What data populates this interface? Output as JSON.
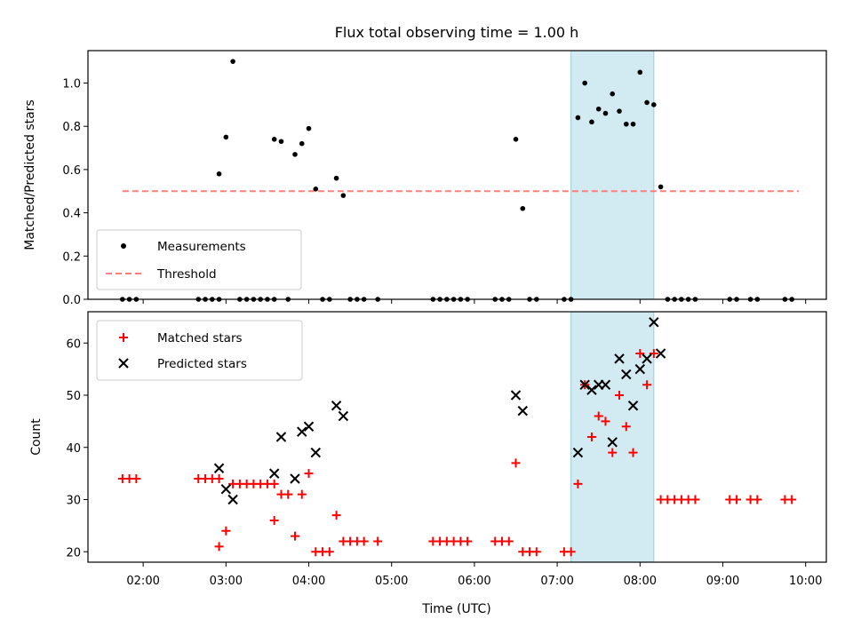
{
  "chart_data": [
    {
      "type": "scatter",
      "title": "Flux total observing time = 1.00 h",
      "xlabel": "",
      "ylabel": "Matched/Predicted stars",
      "xlim": [
        "01:20",
        "10:15"
      ],
      "ylim": [
        0,
        1.15
      ],
      "yticks": [
        "0.0",
        "0.2",
        "0.4",
        "0.6",
        "0.8",
        "1.0"
      ],
      "highlight_interval": [
        "07:10",
        "08:10"
      ],
      "highlight_color": "#add8e6",
      "legend_position": "lower-left",
      "series": [
        {
          "name": "Measurements",
          "marker": "dot",
          "color": "#000000",
          "points": [
            [
              "01:45",
              0
            ],
            [
              "01:50",
              0
            ],
            [
              "01:55",
              0
            ],
            [
              "02:40",
              0
            ],
            [
              "02:45",
              0
            ],
            [
              "02:50",
              0
            ],
            [
              "02:55",
              0
            ],
            [
              "02:55",
              0.58
            ],
            [
              "03:00",
              0.75
            ],
            [
              "03:05",
              1.1
            ],
            [
              "03:10",
              0
            ],
            [
              "03:15",
              0
            ],
            [
              "03:20",
              0
            ],
            [
              "03:25",
              0
            ],
            [
              "03:30",
              0
            ],
            [
              "03:35",
              0
            ],
            [
              "03:35",
              0.74
            ],
            [
              "03:40",
              0.73
            ],
            [
              "03:45",
              0
            ],
            [
              "03:50",
              0.67
            ],
            [
              "03:55",
              0.72
            ],
            [
              "04:00",
              0.79
            ],
            [
              "04:05",
              0.51
            ],
            [
              "04:10",
              0
            ],
            [
              "04:15",
              0
            ],
            [
              "04:20",
              0.56
            ],
            [
              "04:25",
              0.48
            ],
            [
              "04:30",
              0
            ],
            [
              "04:35",
              0
            ],
            [
              "04:40",
              0
            ],
            [
              "04:50",
              0
            ],
            [
              "05:30",
              0
            ],
            [
              "05:35",
              0
            ],
            [
              "05:40",
              0
            ],
            [
              "05:45",
              0
            ],
            [
              "05:50",
              0
            ],
            [
              "05:55",
              0
            ],
            [
              "06:15",
              0
            ],
            [
              "06:20",
              0
            ],
            [
              "06:25",
              0
            ],
            [
              "06:30",
              0.74
            ],
            [
              "06:35",
              0.42
            ],
            [
              "06:40",
              0
            ],
            [
              "06:45",
              0
            ],
            [
              "07:05",
              0
            ],
            [
              "07:10",
              0
            ],
            [
              "07:15",
              0.84
            ],
            [
              "07:20",
              1.0
            ],
            [
              "07:25",
              0.82
            ],
            [
              "07:30",
              0.88
            ],
            [
              "07:35",
              0.86
            ],
            [
              "07:40",
              0.95
            ],
            [
              "07:45",
              0.87
            ],
            [
              "07:50",
              0.81
            ],
            [
              "07:55",
              0.81
            ],
            [
              "08:00",
              1.05
            ],
            [
              "08:05",
              0.91
            ],
            [
              "08:10",
              0.9
            ],
            [
              "08:15",
              0.52
            ],
            [
              "08:20",
              0
            ],
            [
              "08:25",
              0
            ],
            [
              "08:30",
              0
            ],
            [
              "08:35",
              0
            ],
            [
              "08:40",
              0
            ],
            [
              "09:05",
              0
            ],
            [
              "09:10",
              0
            ],
            [
              "09:20",
              0
            ],
            [
              "09:25",
              0
            ],
            [
              "09:45",
              0
            ],
            [
              "09:50",
              0
            ]
          ]
        },
        {
          "name": "Threshold",
          "marker": "dashed-line",
          "color": "#ff7f7f",
          "points": [
            [
              "01:45",
              0.5
            ],
            [
              "09:55",
              0.5
            ]
          ]
        }
      ]
    },
    {
      "type": "scatter",
      "title": "",
      "xlabel": "Time (UTC)",
      "ylabel": "Count",
      "xlim": [
        "01:20",
        "10:15"
      ],
      "ylim": [
        18,
        66
      ],
      "yticks": [
        "20",
        "30",
        "40",
        "50",
        "60"
      ],
      "xticks": [
        "02:00",
        "03:00",
        "04:00",
        "05:00",
        "06:00",
        "07:00",
        "08:00",
        "09:00",
        "10:00"
      ],
      "highlight_interval": [
        "07:10",
        "08:10"
      ],
      "highlight_color": "#add8e6",
      "legend_position": "upper-left",
      "series": [
        {
          "name": "Matched stars",
          "marker": "plus",
          "color": "#ff0000",
          "points": [
            [
              "01:45",
              34
            ],
            [
              "01:50",
              34
            ],
            [
              "01:55",
              34
            ],
            [
              "02:40",
              34
            ],
            [
              "02:45",
              34
            ],
            [
              "02:50",
              34
            ],
            [
              "02:55",
              34
            ],
            [
              "02:55",
              21
            ],
            [
              "03:00",
              24
            ],
            [
              "03:05",
              33
            ],
            [
              "03:10",
              33
            ],
            [
              "03:15",
              33
            ],
            [
              "03:20",
              33
            ],
            [
              "03:25",
              33
            ],
            [
              "03:30",
              33
            ],
            [
              "03:35",
              33
            ],
            [
              "03:35",
              26
            ],
            [
              "03:40",
              31
            ],
            [
              "03:45",
              31
            ],
            [
              "03:50",
              23
            ],
            [
              "03:55",
              31
            ],
            [
              "04:00",
              35
            ],
            [
              "04:05",
              20
            ],
            [
              "04:10",
              20
            ],
            [
              "04:15",
              20
            ],
            [
              "04:20",
              27
            ],
            [
              "04:25",
              22
            ],
            [
              "04:30",
              22
            ],
            [
              "04:35",
              22
            ],
            [
              "04:40",
              22
            ],
            [
              "04:50",
              22
            ],
            [
              "05:30",
              22
            ],
            [
              "05:35",
              22
            ],
            [
              "05:40",
              22
            ],
            [
              "05:45",
              22
            ],
            [
              "05:50",
              22
            ],
            [
              "05:55",
              22
            ],
            [
              "06:15",
              22
            ],
            [
              "06:20",
              22
            ],
            [
              "06:25",
              22
            ],
            [
              "06:30",
              37
            ],
            [
              "06:35",
              20
            ],
            [
              "06:40",
              20
            ],
            [
              "06:45",
              20
            ],
            [
              "07:05",
              20
            ],
            [
              "07:10",
              20
            ],
            [
              "07:15",
              33
            ],
            [
              "07:20",
              52
            ],
            [
              "07:25",
              42
            ],
            [
              "07:30",
              46
            ],
            [
              "07:35",
              45
            ],
            [
              "07:40",
              39
            ],
            [
              "07:45",
              50
            ],
            [
              "07:50",
              44
            ],
            [
              "07:55",
              39
            ],
            [
              "08:00",
              58
            ],
            [
              "08:05",
              52
            ],
            [
              "08:10",
              58
            ],
            [
              "08:15",
              30
            ],
            [
              "08:20",
              30
            ],
            [
              "08:25",
              30
            ],
            [
              "08:30",
              30
            ],
            [
              "08:35",
              30
            ],
            [
              "08:40",
              30
            ],
            [
              "09:05",
              30
            ],
            [
              "09:10",
              30
            ],
            [
              "09:20",
              30
            ],
            [
              "09:25",
              30
            ],
            [
              "09:45",
              30
            ],
            [
              "09:50",
              30
            ]
          ]
        },
        {
          "name": "Predicted stars",
          "marker": "x",
          "color": "#000000",
          "points": [
            [
              "02:55",
              36
            ],
            [
              "03:00",
              32
            ],
            [
              "03:05",
              30
            ],
            [
              "03:35",
              35
            ],
            [
              "03:40",
              42
            ],
            [
              "03:50",
              34
            ],
            [
              "03:55",
              43
            ],
            [
              "04:00",
              44
            ],
            [
              "04:05",
              39
            ],
            [
              "04:20",
              48
            ],
            [
              "04:25",
              46
            ],
            [
              "06:30",
              50
            ],
            [
              "06:35",
              47
            ],
            [
              "07:15",
              39
            ],
            [
              "07:20",
              52
            ],
            [
              "07:25",
              51
            ],
            [
              "07:30",
              52
            ],
            [
              "07:35",
              52
            ],
            [
              "07:40",
              41
            ],
            [
              "07:45",
              57
            ],
            [
              "07:50",
              54
            ],
            [
              "07:55",
              48
            ],
            [
              "08:00",
              55
            ],
            [
              "08:05",
              57
            ],
            [
              "08:10",
              64
            ],
            [
              "08:15",
              58
            ]
          ]
        }
      ]
    }
  ]
}
